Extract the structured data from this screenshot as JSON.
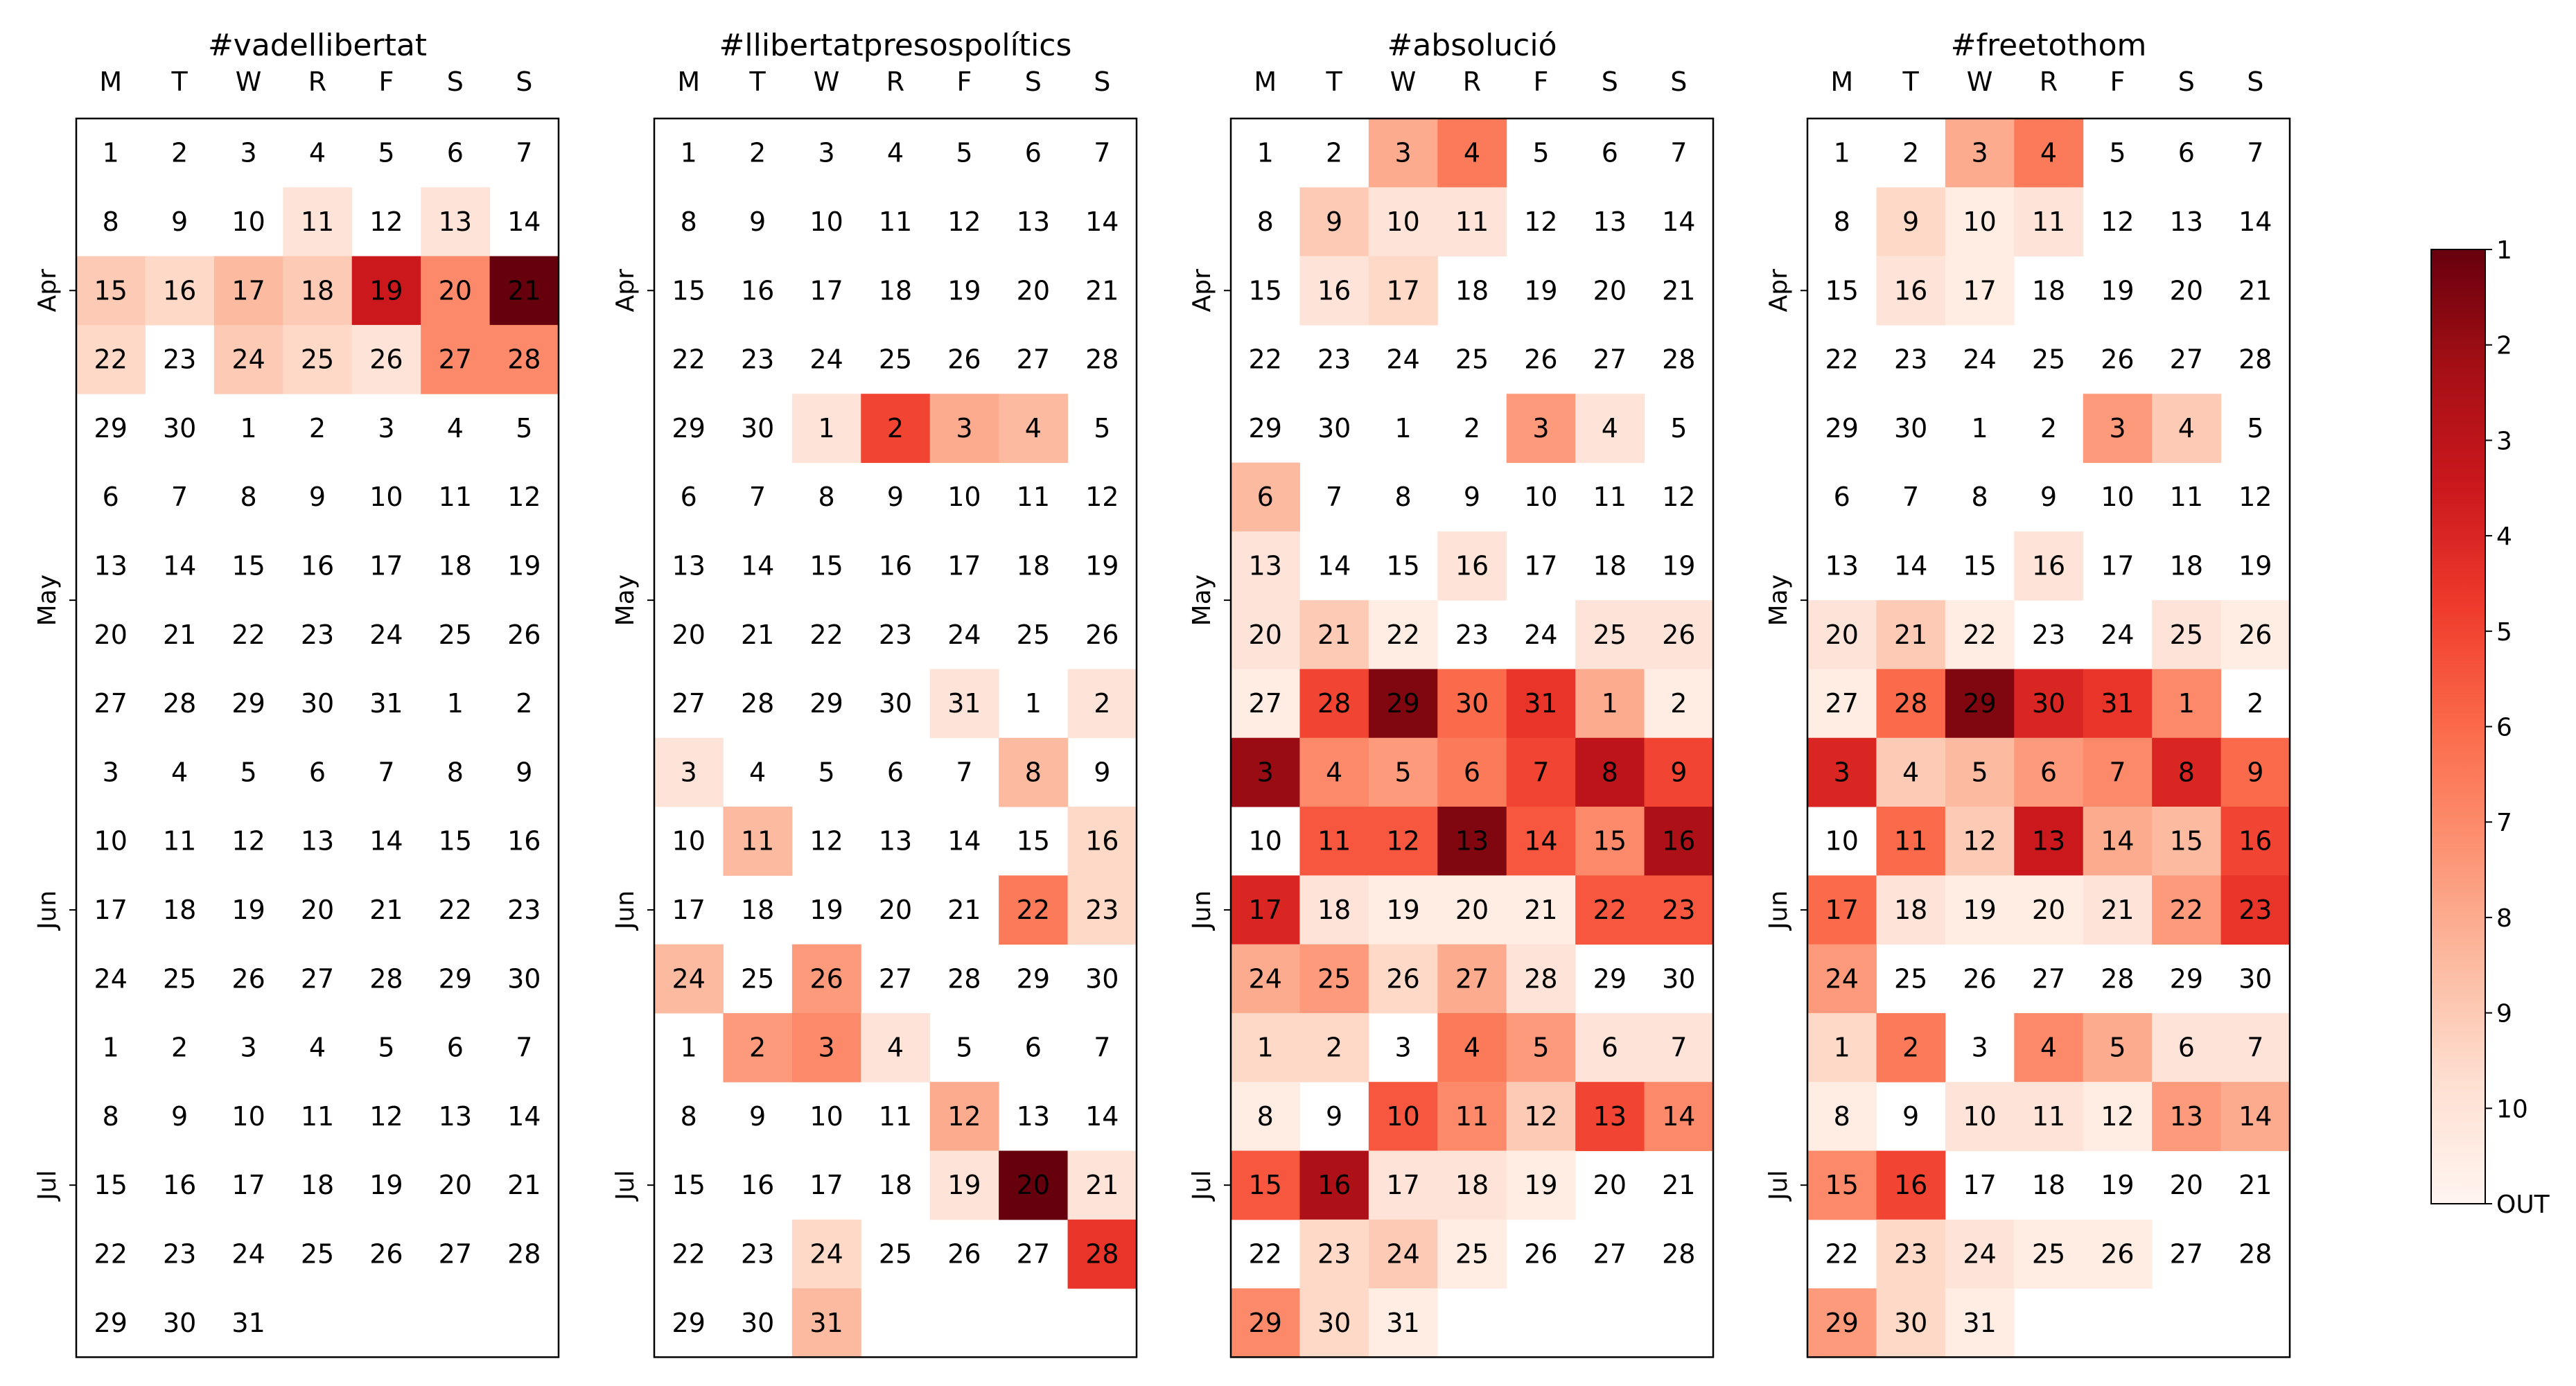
{
  "chart_data": {
    "type": "heatmap",
    "subtype": "calendar",
    "weekdays": [
      "M",
      "T",
      "W",
      "R",
      "F",
      "S",
      "S"
    ],
    "month_labels": [
      {
        "label": "Apr",
        "week_index": 2
      },
      {
        "label": "May",
        "week_index": 6.5
      },
      {
        "label": "Jun",
        "week_index": 11
      },
      {
        "label": "Jul",
        "week_index": 15
      }
    ],
    "days": [
      [
        1,
        2,
        3,
        4,
        5,
        6,
        7
      ],
      [
        8,
        9,
        10,
        11,
        12,
        13,
        14
      ],
      [
        15,
        16,
        17,
        18,
        19,
        20,
        21
      ],
      [
        22,
        23,
        24,
        25,
        26,
        27,
        28
      ],
      [
        29,
        30,
        1,
        2,
        3,
        4,
        5
      ],
      [
        6,
        7,
        8,
        9,
        10,
        11,
        12
      ],
      [
        13,
        14,
        15,
        16,
        17,
        18,
        19
      ],
      [
        20,
        21,
        22,
        23,
        24,
        25,
        26
      ],
      [
        27,
        28,
        29,
        30,
        31,
        1,
        2
      ],
      [
        3,
        4,
        5,
        6,
        7,
        8,
        9
      ],
      [
        10,
        11,
        12,
        13,
        14,
        15,
        16
      ],
      [
        17,
        18,
        19,
        20,
        21,
        22,
        23
      ],
      [
        24,
        25,
        26,
        27,
        28,
        29,
        30
      ],
      [
        1,
        2,
        3,
        4,
        5,
        6,
        7
      ],
      [
        8,
        9,
        10,
        11,
        12,
        13,
        14
      ],
      [
        15,
        16,
        17,
        18,
        19,
        20,
        21
      ],
      [
        22,
        23,
        24,
        25,
        26,
        27,
        28
      ],
      [
        29,
        30,
        31
      ]
    ],
    "colorbar": {
      "ticks": [
        "1",
        "2",
        "3",
        "4",
        "5",
        "6",
        "7",
        "8",
        "9",
        "10",
        "OUT"
      ],
      "min_rank": 1,
      "max_rank": 11,
      "out_rank": 11,
      "description": "daily rank (1 = darkest); OUT = not ranked"
    },
    "panels": [
      {
        "title": "#vadellibertat",
        "ranks": [
          [
            11,
            11,
            11,
            11,
            11,
            11,
            11
          ],
          [
            11,
            11,
            11,
            10,
            11,
            10,
            11
          ],
          [
            9,
            9.5,
            8.5,
            9,
            3.5,
            7,
            1
          ],
          [
            9.5,
            11,
            9,
            9.5,
            10,
            7,
            7
          ],
          [
            11,
            11,
            11,
            11,
            11,
            11,
            11
          ],
          [
            11,
            11,
            11,
            11,
            11,
            11,
            11
          ],
          [
            11,
            11,
            11,
            11,
            11,
            11,
            11
          ],
          [
            11,
            11,
            11,
            11,
            11,
            11,
            11
          ],
          [
            11,
            11,
            11,
            11,
            11,
            11,
            11
          ],
          [
            11,
            11,
            11,
            11,
            11,
            11,
            11
          ],
          [
            11,
            11,
            11,
            11,
            11,
            11,
            11
          ],
          [
            11,
            11,
            11,
            11,
            11,
            11,
            11
          ],
          [
            11,
            11,
            11,
            11,
            11,
            11,
            11
          ],
          [
            11,
            11,
            11,
            11,
            11,
            11,
            11
          ],
          [
            11,
            11,
            11,
            11,
            11,
            11,
            11
          ],
          [
            11,
            11,
            11,
            11,
            11,
            11,
            11
          ],
          [
            11,
            11,
            11,
            11,
            11,
            11,
            11
          ],
          [
            11,
            11,
            11
          ]
        ]
      },
      {
        "title": "#llibertatpresospolítics",
        "ranks": [
          [
            11,
            11,
            11,
            11,
            11,
            11,
            11
          ],
          [
            11,
            11,
            11,
            11,
            11,
            11,
            11
          ],
          [
            11,
            11,
            11,
            11,
            11,
            11,
            11
          ],
          [
            11,
            11,
            11,
            11,
            11,
            11,
            11
          ],
          [
            11,
            11,
            10,
            5,
            8,
            8.5,
            11
          ],
          [
            11,
            11,
            11,
            11,
            11,
            11,
            11
          ],
          [
            11,
            11,
            11,
            11,
            11,
            11,
            11
          ],
          [
            11,
            11,
            11,
            11,
            11,
            11,
            11
          ],
          [
            11,
            11,
            11,
            11,
            10,
            11,
            10
          ],
          [
            10,
            11,
            11,
            11,
            11,
            8.5,
            11
          ],
          [
            11,
            8.5,
            11,
            11,
            11,
            11,
            9.5
          ],
          [
            11,
            11,
            11,
            11,
            11,
            6.5,
            9.5
          ],
          [
            8.5,
            11,
            7.5,
            11,
            11,
            11,
            11
          ],
          [
            11,
            7.5,
            7,
            10,
            11,
            11,
            11
          ],
          [
            11,
            11,
            11,
            11,
            8,
            11,
            11
          ],
          [
            11,
            11,
            11,
            11,
            10,
            1,
            10
          ],
          [
            11,
            11,
            9.5,
            11,
            11,
            11,
            4.5
          ],
          [
            11,
            11,
            8.5
          ]
        ]
      },
      {
        "title": "#absolució",
        "ranks": [
          [
            11,
            11,
            8,
            6.5,
            11,
            11,
            11
          ],
          [
            11,
            9,
            10,
            10,
            11,
            11,
            11
          ],
          [
            11,
            10,
            9.5,
            11,
            11,
            11,
            11
          ],
          [
            11,
            11,
            11,
            11,
            11,
            11,
            11
          ],
          [
            11,
            11,
            11,
            11,
            7.5,
            10,
            11
          ],
          [
            8.5,
            11,
            11,
            11,
            11,
            11,
            11
          ],
          [
            10,
            11,
            11,
            10,
            11,
            11,
            11
          ],
          [
            10,
            9,
            10.5,
            11,
            11,
            10,
            10
          ],
          [
            10.5,
            5,
            1.5,
            6,
            4.5,
            8,
            10.5
          ],
          [
            2,
            7,
            7.5,
            6.5,
            5,
            3,
            5
          ],
          [
            11,
            5.5,
            5.5,
            1.5,
            5.5,
            7,
            2.5
          ],
          [
            4,
            10,
            10.5,
            10.5,
            10.5,
            5.5,
            5.5
          ],
          [
            8,
            7.5,
            9.5,
            8,
            10,
            11,
            11
          ],
          [
            9.5,
            9.5,
            11,
            6.5,
            7.5,
            10,
            10
          ],
          [
            10.5,
            11,
            5.5,
            7,
            9,
            5,
            7
          ],
          [
            5.5,
            2.5,
            10,
            10,
            10.5,
            11,
            11
          ],
          [
            11,
            9.5,
            9,
            10.5,
            11,
            11,
            11
          ],
          [
            7,
            9.5,
            10.5
          ]
        ]
      },
      {
        "title": "#freetothom",
        "ranks": [
          [
            11,
            11,
            8,
            6.5,
            11,
            11,
            11
          ],
          [
            11,
            9.5,
            10.5,
            10,
            11,
            11,
            11
          ],
          [
            11,
            10,
            10.5,
            11,
            11,
            11,
            11
          ],
          [
            11,
            11,
            11,
            11,
            11,
            11,
            11
          ],
          [
            11,
            11,
            11,
            11,
            7.5,
            9,
            11
          ],
          [
            11,
            11,
            11,
            11,
            11,
            11,
            11
          ],
          [
            11,
            11,
            11,
            10,
            11,
            11,
            11
          ],
          [
            10,
            9,
            10.5,
            11,
            11,
            10,
            10.5
          ],
          [
            10.5,
            6,
            1.5,
            4,
            4.5,
            7,
            11
          ],
          [
            4,
            9,
            8.5,
            7.5,
            7,
            4,
            6
          ],
          [
            11,
            6,
            9,
            3.5,
            8,
            8.5,
            5
          ],
          [
            6,
            10,
            10.5,
            10.5,
            10,
            7.5,
            4.5
          ],
          [
            7.5,
            11,
            11,
            11,
            11,
            11,
            11
          ],
          [
            9.5,
            6.5,
            11,
            7,
            8,
            10,
            10
          ],
          [
            10.5,
            11,
            10,
            10,
            10.5,
            7.5,
            8
          ],
          [
            7,
            5,
            11,
            11,
            11,
            11,
            11
          ],
          [
            11,
            9.5,
            10,
            10.5,
            10.5,
            11,
            11
          ],
          [
            7.5,
            9.5,
            10.5
          ]
        ]
      }
    ]
  }
}
